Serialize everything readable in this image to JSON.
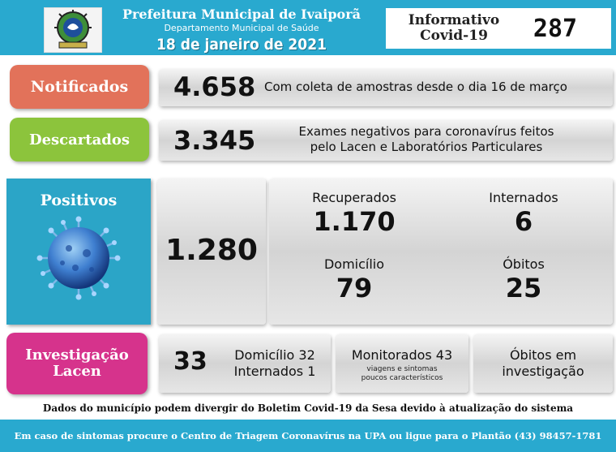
{
  "header": {
    "title": "Prefeitura Municipal de Ivaiporã",
    "subtitle": "Departamento Municipal de Saúde",
    "date": "18 de janeiro de 2021",
    "informativo_line1": "Informativo",
    "informativo_line2": "Covid-19",
    "edition": "287"
  },
  "notificados": {
    "label": "Notificados",
    "value": "4.658",
    "description": "Com coleta de amostras desde o dia 16 de março"
  },
  "descartados": {
    "label": "Descartados",
    "value": "3.345",
    "description_line1": "Exames negativos para coronavírus feitos",
    "description_line2": "pelo Lacen e Laboratórios Particulares"
  },
  "positivos": {
    "label": "Positivos",
    "value": "1.280",
    "recuperados_label": "Recuperados",
    "recuperados_value": "1.170",
    "internados_label": "Internados",
    "internados_value": "6",
    "domicilio_label": "Domicílio",
    "domicilio_value": "79",
    "obitos_label": "Óbitos",
    "obitos_value": "25"
  },
  "investigacao": {
    "label_line1": "Investigação",
    "label_line2": "Lacen",
    "value": "33",
    "domicilio": "Domicílio 32",
    "internados": "Internados 1",
    "monitorados": "Monitorados 43",
    "monitorados_note_line1": "viagens e sintomas",
    "monitorados_note_line2": "poucos característicos",
    "obitos_line1": "Óbitos em",
    "obitos_line2": "investigação"
  },
  "disclaimer": "Dados do município podem divergir do Boletim Covid-19 da Sesa devido à atualização do sistema",
  "footer": "Em caso de sintomas procure o Centro de Triagem Coronavírus na UPA ou ligue para o Plantão (43) 98457-1781",
  "colors": {
    "header_blue": "#29a9cf",
    "notificados": "#e2725a",
    "descartados": "#8cc43c",
    "positivos": "#2ba5c7",
    "investigacao": "#d6338c"
  }
}
